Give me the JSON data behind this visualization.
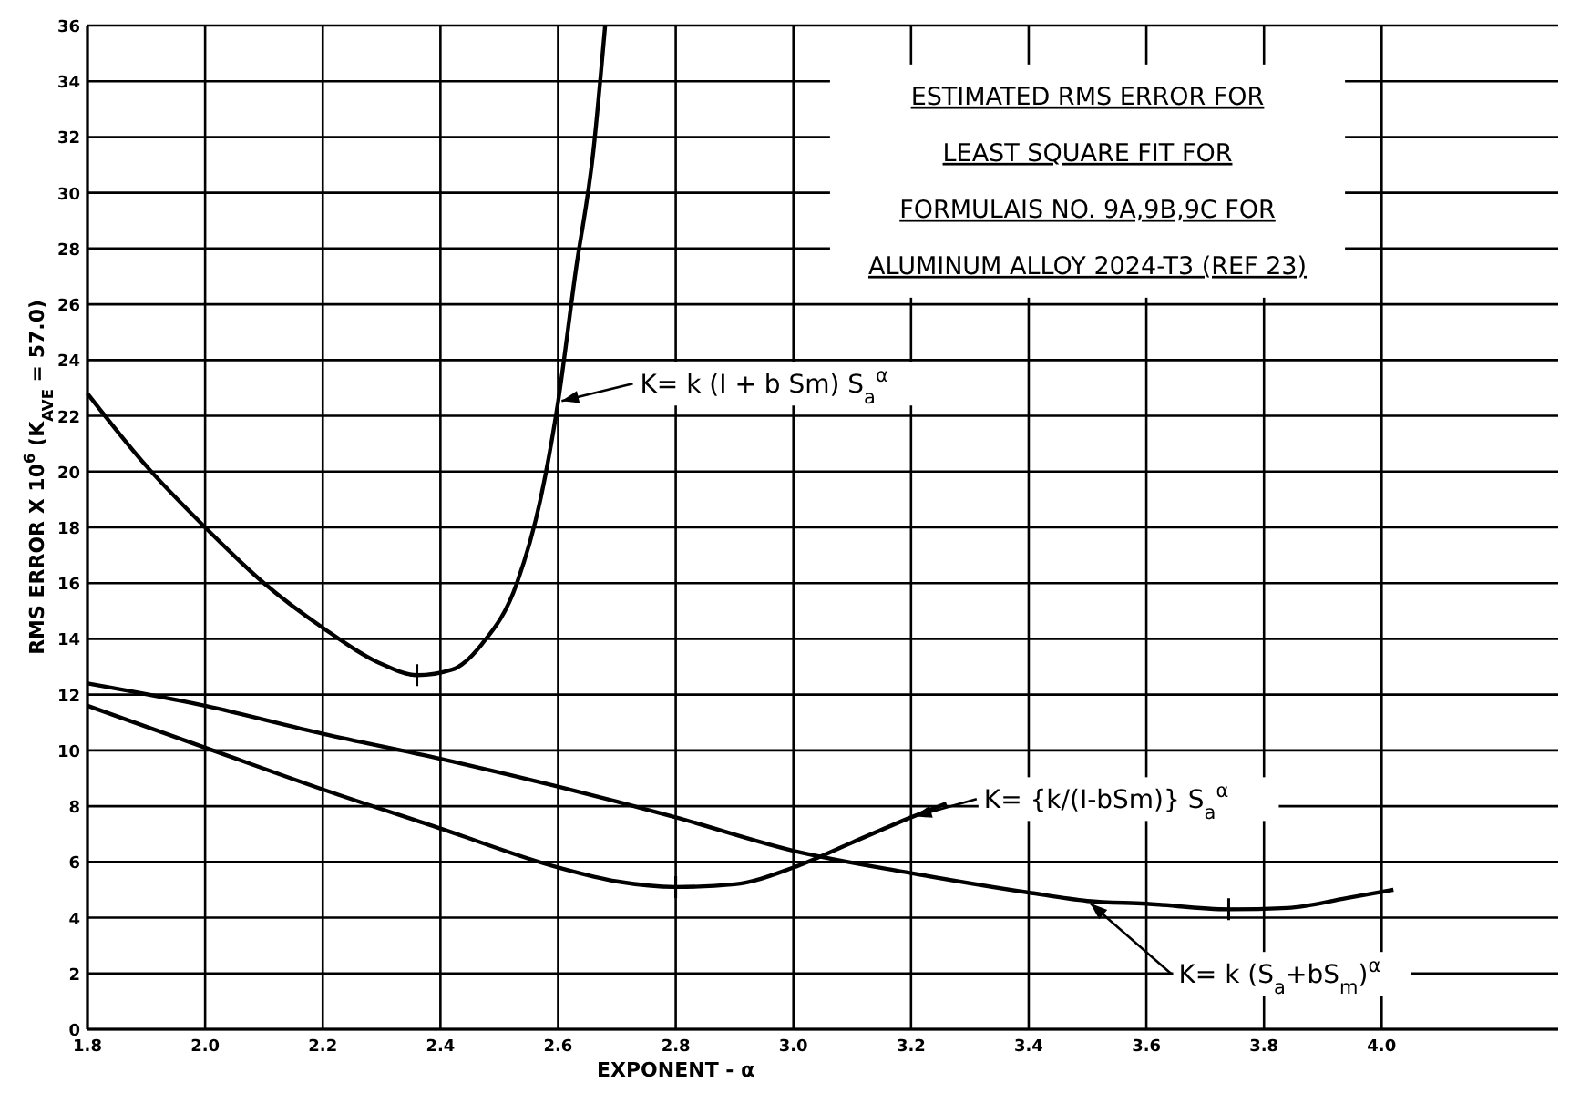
{
  "chart_data": {
    "type": "line",
    "title": "ESTIMATED RMS ERROR FOR\nLEAST SQUARE FIT FOR\nFORMULAIS  NO. 9A,9B,9C FOR\nALUMINUM ALLOY 2024-T3 (REF 23)",
    "xlabel": "EXPONENT  - α",
    "ylabel": "RMS ERROR X 10$^{6}$  (K$_{AVE}$ = 57.0)",
    "xlim": [
      1.8,
      4.3
    ],
    "xticks": [
      1.8,
      {
        "value": 2,
        "label": "2.0"
      },
      2.2,
      2.4,
      2.6,
      2.8,
      {
        "value": 3,
        "label": "3.0"
      },
      3.2,
      3.4,
      3.6,
      3.8,
      {
        "value": 4,
        "label": "4.0"
      }
    ],
    "ylim": [
      0,
      36
    ],
    "yticks": [
      0,
      2,
      4,
      6,
      8,
      10,
      12,
      14,
      16,
      18,
      20,
      22,
      24,
      26,
      28,
      30,
      32,
      34,
      36
    ],
    "grid": true,
    "legend": "right",
    "line_style": "solid",
    "series": [
      {
        "name": "K= k (I + b Sm) S$_{a}$$^{α}$",
        "color": "#000000",
        "x": [
          1.8,
          1.9,
          2.0,
          2.1,
          2.2,
          2.3,
          2.36,
          2.42,
          2.47,
          2.53,
          2.57,
          2.6,
          2.63,
          2.66,
          2.68
        ],
        "values": [
          22.8,
          20.2,
          18,
          16,
          14.4,
          13.1,
          12.7,
          12.9,
          13.8,
          16,
          19,
          22.5,
          27.2,
          31.5,
          36
        ]
      },
      {
        "name": "K= {k/(I-bSm)} S$_{a}$$^{α}$",
        "color": "#000000",
        "x": [
          1.8,
          2.0,
          2.2,
          2.4,
          2.6,
          2.7,
          2.8,
          2.9,
          3.0,
          3.1,
          3.2,
          3.26
        ],
        "values": [
          11.6,
          10.1,
          8.6,
          7.2,
          5.8,
          5.3,
          5.1,
          5.2,
          5.8,
          6.7,
          7.6,
          8.1
        ]
      },
      {
        "name": "K= k (S$_{a}$+bS$_{m}$)$^{α}$",
        "color": "#000000",
        "x": [
          1.8,
          2.0,
          2.2,
          2.4,
          2.6,
          2.8,
          3.0,
          3.2,
          3.4,
          3.5,
          3.6,
          3.74,
          3.84,
          3.94,
          4.02
        ],
        "values": [
          12.4,
          11.6,
          10.6,
          9.7,
          8.7,
          7.6,
          6.4,
          5.6,
          4.9,
          4.6,
          4.5,
          4.3,
          4.35,
          4.7,
          5.0
        ]
      },
      {
        "type": "scatter",
        "marker": "cross",
        "color": "#000000",
        "x": [
          2.36,
          2.8,
          3.74
        ],
        "values": [
          12.7,
          5.1,
          4.3
        ]
      }
    ]
  }
}
